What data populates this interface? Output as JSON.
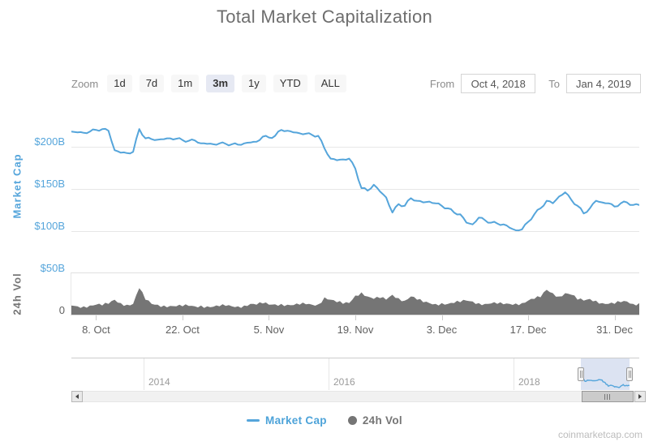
{
  "title": "Total Market Capitalization",
  "watermark": "coinmarketcap.com",
  "toolbar": {
    "zoom_label": "Zoom",
    "buttons": [
      "1d",
      "7d",
      "1m",
      "3m",
      "1y",
      "YTD",
      "ALL"
    ],
    "selected": "3m",
    "from_label": "From",
    "from_value": "Oct 4, 2018",
    "to_label": "To",
    "to_value": "Jan 4, 2019"
  },
  "legend": {
    "items": [
      {
        "label": "Market Cap",
        "color": "#55A5DB",
        "marker": "line"
      },
      {
        "label": "24h Vol",
        "color": "#757575",
        "marker": "circle"
      }
    ]
  },
  "colors": {
    "line_blue": "#55A5DB",
    "volume_gray": "#757575",
    "gridline": "#E7E7E7",
    "selected_button_bg": "#E6E9F3",
    "navigator_selection": "#C9D6EA"
  },
  "chart_data": {
    "type": "line",
    "title": "Total Market Capitalization",
    "x_start": "Oct 4, 2018",
    "x_end": "Jan 4, 2019",
    "x_ticks": [
      {
        "day": 4,
        "label": "8. Oct"
      },
      {
        "day": 18,
        "label": "22. Oct"
      },
      {
        "day": 32,
        "label": "5. Nov"
      },
      {
        "day": 46,
        "label": "19. Nov"
      },
      {
        "day": 60,
        "label": "3. Dec"
      },
      {
        "day": 74,
        "label": "17. Dec"
      },
      {
        "day": 88,
        "label": "31. Dec"
      }
    ],
    "yaxis_left": {
      "label": "Market Cap",
      "unit": "$B",
      "ticks": [
        {
          "value": 200,
          "label": "$200B"
        },
        {
          "value": 150,
          "label": "$150B"
        },
        {
          "value": 100,
          "label": "$100B"
        },
        {
          "value": 50,
          "label": "$50B"
        }
      ]
    },
    "volume_axis": {
      "label": "24h Vol",
      "min_label": "0",
      "min": 0,
      "max": 50,
      "unit": "$B"
    },
    "series": [
      {
        "name": "Market Cap",
        "type": "line",
        "color": "#55A5DB",
        "unit": "$B",
        "values": [
          218,
          217,
          216.5,
          218,
          220,
          221,
          219,
          196,
          193,
          192.5,
          194,
          221,
          210,
          209,
          208.5,
          209,
          210,
          209.5,
          208,
          207,
          207.5,
          204,
          203.5,
          203,
          204,
          203.5,
          203,
          202.5,
          204,
          205,
          206,
          212,
          211,
          213,
          220,
          219,
          217,
          216,
          215.5,
          214,
          213,
          198,
          186,
          184,
          185,
          186,
          174,
          151,
          148,
          155,
          147,
          140,
          122,
          132,
          130,
          139,
          136,
          134,
          135,
          133,
          130,
          127,
          122,
          120,
          110,
          108,
          116,
          113,
          110,
          109,
          108,
          104,
          101,
          102,
          111,
          120,
          127,
          136,
          133,
          141,
          146,
          137,
          130,
          121,
          127,
          136,
          134,
          133,
          129,
          133,
          134,
          131,
          131
        ]
      },
      {
        "name": "24h Vol",
        "type": "column",
        "color": "#757575",
        "unit": "$B",
        "values": [
          11,
          10,
          10,
          11,
          12,
          11,
          13,
          18,
          14,
          12,
          13,
          32,
          18,
          13,
          12,
          11,
          10.5,
          10,
          10,
          10.5,
          10,
          11,
          10,
          9.5,
          10,
          10.5,
          10,
          10,
          11,
          13,
          12,
          13.5,
          12,
          12.5,
          13,
          12,
          11.5,
          12,
          12.5,
          12,
          12.5,
          21,
          18,
          15,
          13,
          14,
          23,
          27,
          22,
          19,
          20,
          18,
          24,
          20,
          17,
          22,
          18,
          15,
          14,
          13,
          14,
          13,
          14,
          15,
          17,
          16,
          14,
          13,
          13.5,
          13,
          12.5,
          13,
          13.5,
          14,
          17,
          19,
          21,
          30,
          26,
          22,
          26,
          24,
          18,
          17,
          19,
          17,
          14,
          13,
          13,
          15,
          16,
          13,
          14
        ]
      }
    ],
    "navigator": {
      "year_labels": [
        "2014",
        "2016",
        "2018"
      ],
      "selection": {
        "from": "Oct 4, 2018",
        "to": "Jan 4, 2019"
      }
    }
  }
}
